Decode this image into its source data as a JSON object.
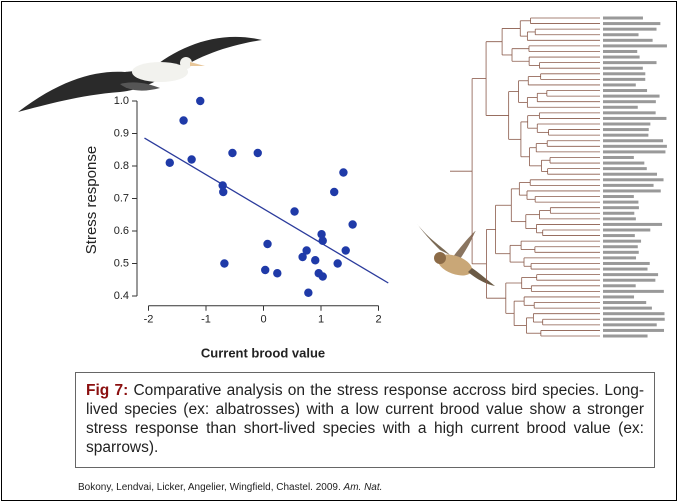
{
  "chart_data": {
    "type": "scatter",
    "xlabel": "Current brood value",
    "ylabel": "Stress response",
    "x": [
      -1.1,
      -1.39,
      -1.63,
      -1.25,
      -0.54,
      -0.1,
      -0.71,
      -0.7,
      -0.68,
      0.07,
      0.03,
      0.24,
      0.54,
      0.68,
      0.75,
      0.9,
      0.96,
      1.03,
      0.78,
      1.01,
      1.03,
      1.23,
      1.39,
      1.29,
      1.43,
      1.55
    ],
    "y": [
      1.0,
      0.94,
      0.81,
      0.82,
      0.84,
      0.84,
      0.74,
      0.72,
      0.5,
      0.56,
      0.48,
      0.47,
      0.66,
      0.52,
      0.54,
      0.51,
      0.47,
      0.46,
      0.41,
      0.59,
      0.57,
      0.72,
      0.78,
      0.5,
      0.54,
      0.62
    ],
    "color": "#1f3aa8",
    "fit": {
      "x": [
        -2.07,
        2.17
      ],
      "y": [
        0.886,
        0.44
      ],
      "color": "#2b3b9c"
    },
    "xlim": [
      -2.2,
      2.3
    ],
    "xticks": [
      -2,
      -1,
      0,
      1,
      2
    ],
    "ylim": [
      0.37,
      1.03
    ],
    "yticks": [
      {
        "value": 1,
        "label": "1.0"
      },
      0.9,
      0.8,
      0.7,
      0.6,
      0.5,
      0.4
    ]
  },
  "caption": {
    "label": "Fig 7:",
    "text": "Comparative analysis on the stress response accross bird species. Long-lived species (ex: albatrosses) with a low current brood value show a stronger stress response than short-lived species with a high current brood value (ex: sparrows)."
  },
  "citation": {
    "text": "Bokony, Lendvai, Licker, Angelier, Wingfield, Chastel. 2009. ",
    "journal": "Am. Nat."
  }
}
